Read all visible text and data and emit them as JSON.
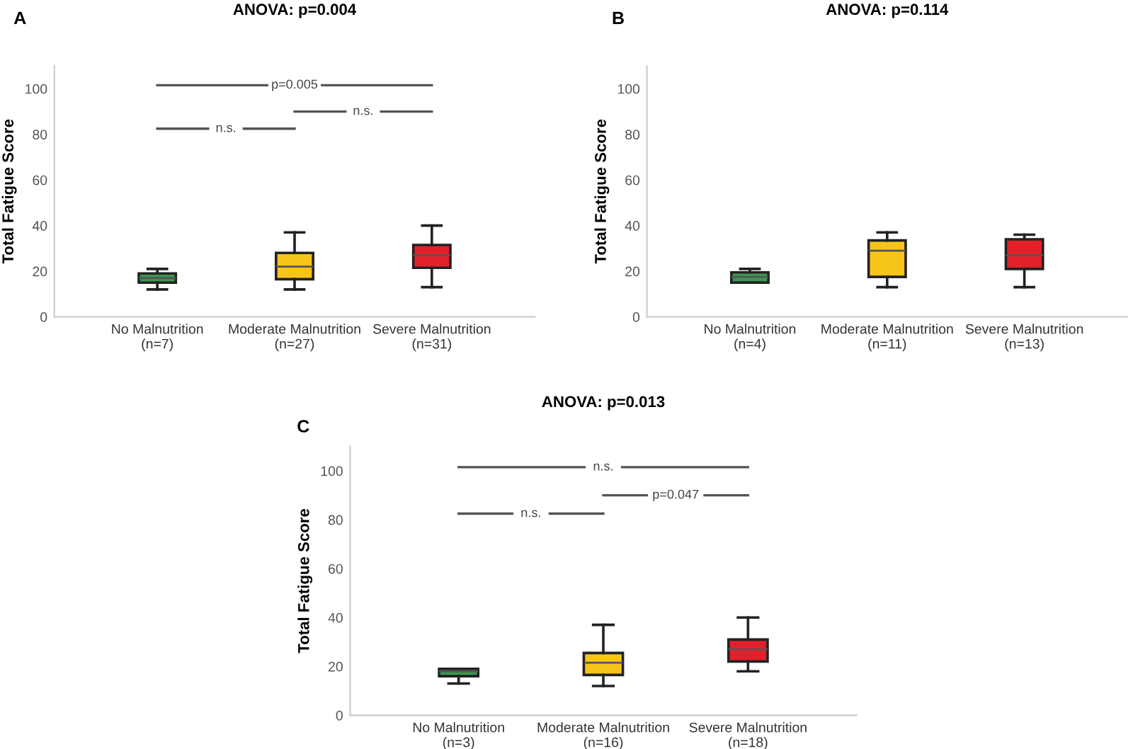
{
  "chart_data": [
    {
      "type": "box",
      "title": "ANOVA: p=0.004",
      "ylabel": "Total Fatigue Score",
      "categories": [
        "No Malnutrition\n(n=7)",
        "Moderate Malnutrition\n(n=27)",
        "Severe Malnutrition\n(n=31)"
      ],
      "colors": [
        "#3a9a4f",
        "#f7c51a",
        "#e3202a"
      ],
      "boxes": [
        {
          "low": 12,
          "q1": 15,
          "median": 17,
          "q3": 19,
          "high": 21
        },
        {
          "low": 12,
          "q1": 16.5,
          "median": 22,
          "q3": 28,
          "high": 37
        },
        {
          "low": 13,
          "q1": 21.5,
          "median": 27,
          "q3": 31.5,
          "high": 40
        }
      ],
      "ylim": [
        0,
        110
      ],
      "yticks": [
        0,
        20,
        40,
        60,
        80,
        100
      ],
      "grid": false,
      "annotations": [
        "A",
        "p=0.005",
        "n.s.",
        "n.s."
      ]
    },
    {
      "type": "box",
      "title": "ANOVA: p=0.114",
      "ylabel": "Total Fatigue Score",
      "categories": [
        "No Malnutrition\n(n=4)",
        "Moderate Malnutrition\n(n=11)",
        "Severe Malnutrition\n(n=13)"
      ],
      "colors": [
        "#3a9a4f",
        "#f7c51a",
        "#e3202a"
      ],
      "boxes": [
        {
          "low": 15,
          "q1": 15,
          "median": 17.5,
          "q3": 19.5,
          "high": 21
        },
        {
          "low": 13,
          "q1": 17.5,
          "median": 29,
          "q3": 33.5,
          "high": 37
        },
        {
          "low": 13,
          "q1": 21,
          "median": 27,
          "q3": 34,
          "high": 36
        }
      ],
      "ylim": [
        0,
        110
      ],
      "yticks": [
        0,
        20,
        40,
        60,
        80,
        100
      ],
      "grid": false,
      "annotations": [
        "B"
      ]
    },
    {
      "type": "box",
      "title": "ANOVA: p=0.013",
      "ylabel": "Total Fatigue Score",
      "categories": [
        "No Malnutrition\n(n=3)",
        "Moderate Malnutrition\n(n=16)",
        "Severe Malnutrition\n(n=18)"
      ],
      "colors": [
        "#3a9a4f",
        "#f7c51a",
        "#e3202a"
      ],
      "boxes": [
        {
          "low": 13,
          "q1": 16,
          "median": 18,
          "q3": 19,
          "high": 19
        },
        {
          "low": 12,
          "q1": 16.5,
          "median": 21.5,
          "q3": 25.5,
          "high": 37
        },
        {
          "low": 18,
          "q1": 22,
          "median": 27,
          "q3": 31,
          "high": 40
        }
      ],
      "ylim": [
        0,
        110
      ],
      "yticks": [
        0,
        20,
        40,
        60,
        80,
        100
      ],
      "grid": false,
      "annotations": [
        "C",
        "n.s.",
        "p=0.047",
        "n.s."
      ]
    }
  ]
}
